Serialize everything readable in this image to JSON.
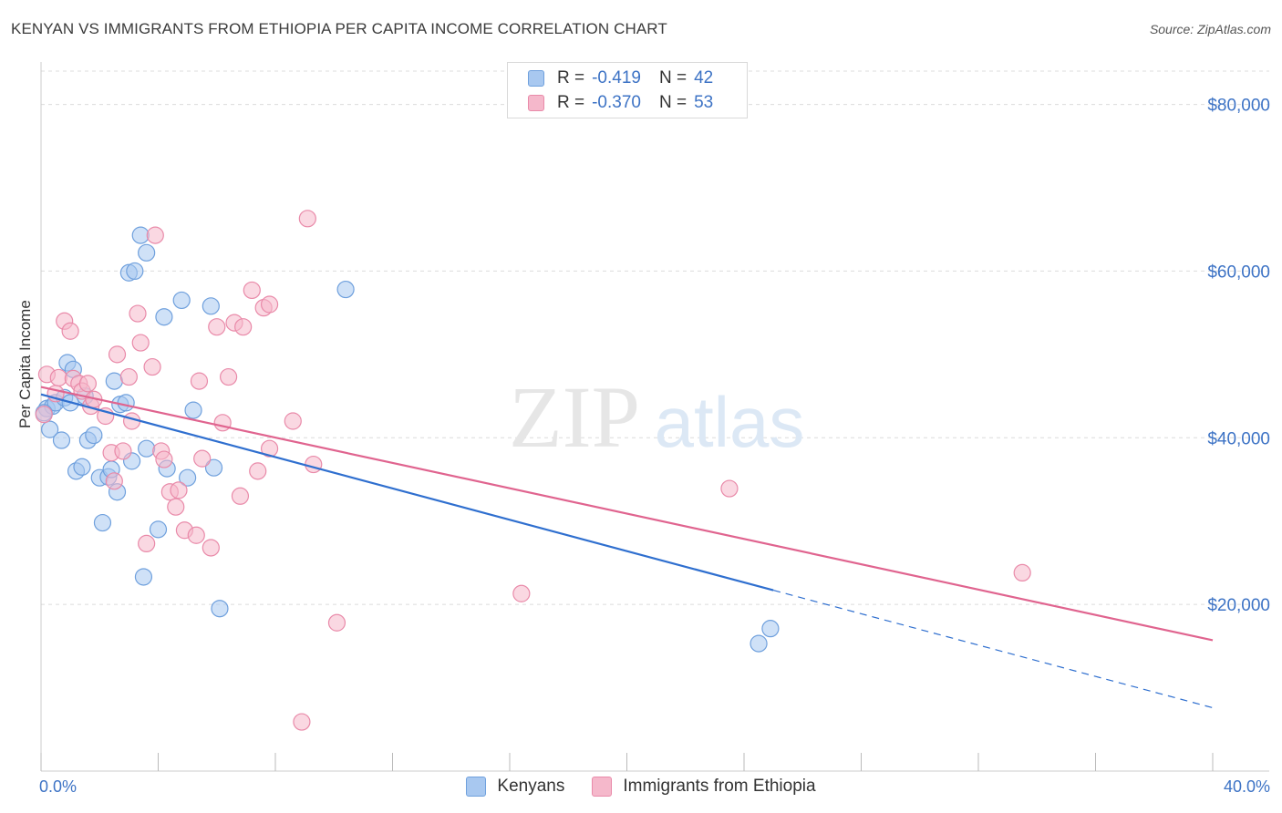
{
  "header": {
    "title": "KENYAN VS IMMIGRANTS FROM ETHIOPIA PER CAPITA INCOME CORRELATION CHART",
    "source": "Source: ZipAtlas.com"
  },
  "watermark": {
    "zip": "ZIP",
    "atlas": "atlas"
  },
  "legend": {
    "rows": [
      {
        "r_label": "R =",
        "r_value": "-0.419",
        "n_label": "N =",
        "n_value": "42",
        "color": "#a8c8f0"
      },
      {
        "r_label": "R =",
        "r_value": "-0.370",
        "n_label": "N =",
        "n_value": "53",
        "color": "#f5b8cb"
      }
    ]
  },
  "bottom_legend": {
    "series1": "Kenyans",
    "series2": "Immigrants from Ethiopia"
  },
  "colors": {
    "blue_fill": "#a8c8f0",
    "blue_stroke": "#6fa0dd",
    "blue_line": "#2f6fcf",
    "pink_fill": "#f5b8cb",
    "pink_stroke": "#e98aa9",
    "pink_line": "#e0648f",
    "axis_label": "#3d73c5",
    "grid": "#dcdcdc"
  },
  "chart_data": {
    "type": "scatter",
    "title": "KENYAN VS IMMIGRANTS FROM ETHIOPIA PER CAPITA INCOME CORRELATION CHART",
    "xlabel": "",
    "ylabel": "Per Capita Income",
    "xlim": [
      0,
      40
    ],
    "ylim": [
      0,
      84000
    ],
    "x_tick_labels": [
      "0.0%",
      "40.0%"
    ],
    "y_ticks": [
      20000,
      40000,
      60000,
      80000
    ],
    "y_tick_labels": [
      "$20,000",
      "$40,000",
      "$60,000",
      "$80,000"
    ],
    "grid": true,
    "series": [
      {
        "name": "Kenyans",
        "points": [
          [
            0.2,
            43500
          ],
          [
            0.3,
            41000
          ],
          [
            0.4,
            43800
          ],
          [
            0.5,
            44200
          ],
          [
            0.7,
            39700
          ],
          [
            0.8,
            44800
          ],
          [
            0.9,
            49000
          ],
          [
            1.1,
            48200
          ],
          [
            1.2,
            36000
          ],
          [
            1.4,
            36500
          ],
          [
            1.5,
            45000
          ],
          [
            1.6,
            39700
          ],
          [
            1.8,
            40300
          ],
          [
            2.0,
            35200
          ],
          [
            2.1,
            29800
          ],
          [
            2.3,
            35300
          ],
          [
            2.4,
            36200
          ],
          [
            2.5,
            46800
          ],
          [
            2.6,
            33500
          ],
          [
            2.7,
            44000
          ],
          [
            2.9,
            44200
          ],
          [
            3.0,
            59800
          ],
          [
            3.1,
            37200
          ],
          [
            3.2,
            60000
          ],
          [
            3.4,
            64300
          ],
          [
            3.5,
            23300
          ],
          [
            3.6,
            62200
          ],
          [
            3.6,
            38700
          ],
          [
            4.0,
            29000
          ],
          [
            4.2,
            54500
          ],
          [
            4.3,
            36300
          ],
          [
            4.8,
            56500
          ],
          [
            5.0,
            35200
          ],
          [
            5.2,
            43300
          ],
          [
            5.8,
            55800
          ],
          [
            5.9,
            36400
          ],
          [
            6.1,
            19500
          ],
          [
            10.4,
            57800
          ],
          [
            24.5,
            15300
          ],
          [
            24.9,
            17100
          ],
          [
            1.0,
            44200
          ],
          [
            0.1,
            43000
          ]
        ]
      },
      {
        "name": "Immigrants from Ethiopia",
        "points": [
          [
            0.1,
            42800
          ],
          [
            0.2,
            47600
          ],
          [
            0.5,
            45300
          ],
          [
            0.6,
            47200
          ],
          [
            0.8,
            54000
          ],
          [
            1.0,
            52800
          ],
          [
            1.1,
            47100
          ],
          [
            1.3,
            46500
          ],
          [
            1.4,
            45600
          ],
          [
            1.6,
            46500
          ],
          [
            1.7,
            43800
          ],
          [
            1.8,
            44600
          ],
          [
            2.2,
            42600
          ],
          [
            2.4,
            38200
          ],
          [
            2.5,
            34800
          ],
          [
            2.6,
            50000
          ],
          [
            2.8,
            38400
          ],
          [
            3.0,
            47300
          ],
          [
            3.1,
            42000
          ],
          [
            3.3,
            54900
          ],
          [
            3.4,
            51400
          ],
          [
            3.6,
            27300
          ],
          [
            3.8,
            48500
          ],
          [
            3.9,
            64300
          ],
          [
            4.1,
            38400
          ],
          [
            4.2,
            37400
          ],
          [
            4.4,
            33500
          ],
          [
            4.6,
            31700
          ],
          [
            4.7,
            33700
          ],
          [
            4.9,
            28900
          ],
          [
            5.3,
            28300
          ],
          [
            5.4,
            46800
          ],
          [
            5.5,
            37500
          ],
          [
            5.8,
            26800
          ],
          [
            6.0,
            53300
          ],
          [
            6.2,
            41800
          ],
          [
            6.4,
            47300
          ],
          [
            6.6,
            53800
          ],
          [
            6.8,
            33000
          ],
          [
            6.9,
            53300
          ],
          [
            7.2,
            57700
          ],
          [
            7.4,
            36000
          ],
          [
            7.6,
            55600
          ],
          [
            7.8,
            56000
          ],
          [
            7.8,
            38700
          ],
          [
            8.6,
            42000
          ],
          [
            9.1,
            66300
          ],
          [
            9.3,
            36800
          ],
          [
            10.1,
            17800
          ],
          [
            8.9,
            5900
          ],
          [
            16.4,
            21300
          ],
          [
            23.5,
            33900
          ],
          [
            33.5,
            23800
          ]
        ]
      }
    ],
    "trend_lines": [
      {
        "name": "Kenyans",
        "x": [
          0,
          25
        ],
        "y": [
          45200,
          21700
        ],
        "dashed_x": [
          25,
          40
        ],
        "dashed_y": [
          21700,
          7600
        ]
      },
      {
        "name": "Immigrants from Ethiopia",
        "x": [
          0,
          40
        ],
        "y": [
          46100,
          15700
        ]
      }
    ]
  }
}
